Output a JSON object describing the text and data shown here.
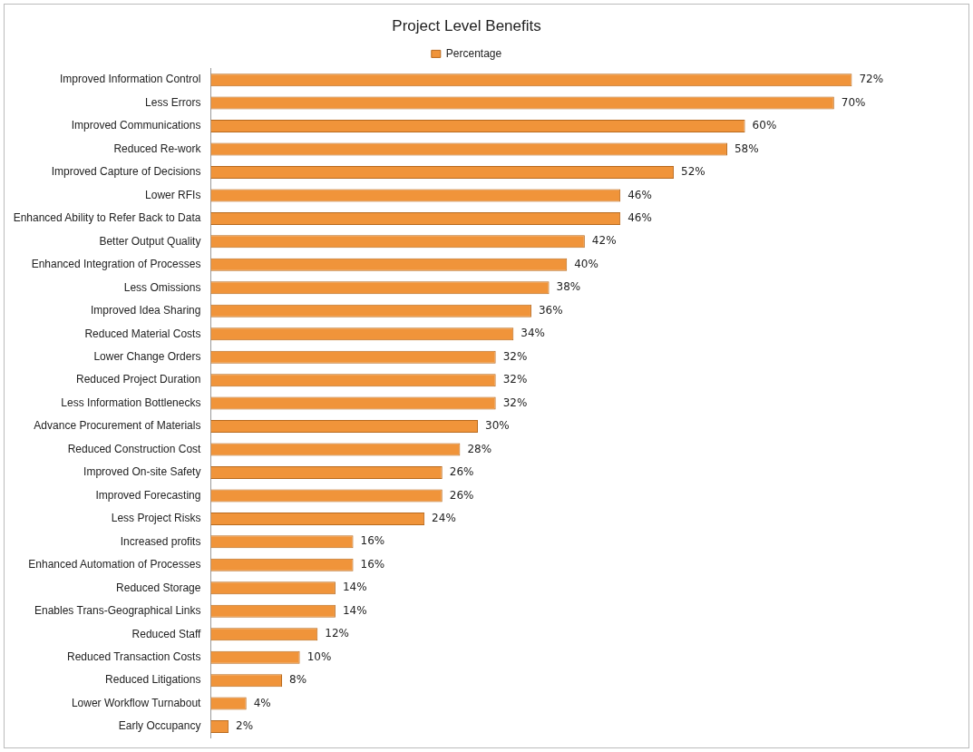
{
  "chart_data": {
    "type": "bar",
    "orientation": "horizontal",
    "title": "Project Level Benefits",
    "legend": "top",
    "categories": [
      "Improved Information Control",
      "Less Errors",
      "Improved Communications",
      "Reduced Re-work",
      "Improved Capture of Decisions",
      "Lower RFIs",
      "Enhanced Ability to Refer Back to Data",
      "Better Output Quality",
      "Enhanced Integration of Processes",
      "Less Omissions",
      "Improved Idea Sharing",
      "Reduced Material Costs",
      "Lower Change Orders",
      "Reduced Project Duration",
      "Less Information Bottlenecks",
      "Advance Procurement of Materials",
      "Reduced Construction Cost",
      "Improved On-site Safety",
      "Improved Forecasting",
      "Less Project Risks",
      "Increased profits",
      "Enhanced Automation of Processes",
      "Reduced Storage",
      "Enables Trans-Geographical Links",
      "Reduced Staff",
      "Reduced Transaction Costs",
      "Reduced Litigations",
      "Lower Workflow Turnabout",
      "Early Occupancy"
    ],
    "series": [
      {
        "name": "Percentage",
        "color": "#f0943a",
        "values": [
          72,
          70,
          60,
          58,
          52,
          46,
          46,
          42,
          40,
          38,
          36,
          34,
          32,
          32,
          32,
          30,
          28,
          26,
          26,
          24,
          16,
          16,
          14,
          14,
          12,
          10,
          8,
          4,
          2
        ],
        "value_labels": [
          "72%",
          "70%",
          "60%",
          "58%",
          "52%",
          "46%",
          "46%",
          "42%",
          "40%",
          "38%",
          "36%",
          "34%",
          "32%",
          "32%",
          "32%",
          "30%",
          "28%",
          "26%",
          "26%",
          "24%",
          "16%",
          "16%",
          "14%",
          "14%",
          "12%",
          "10%",
          "8%",
          "4%",
          "2%"
        ]
      }
    ]
  }
}
